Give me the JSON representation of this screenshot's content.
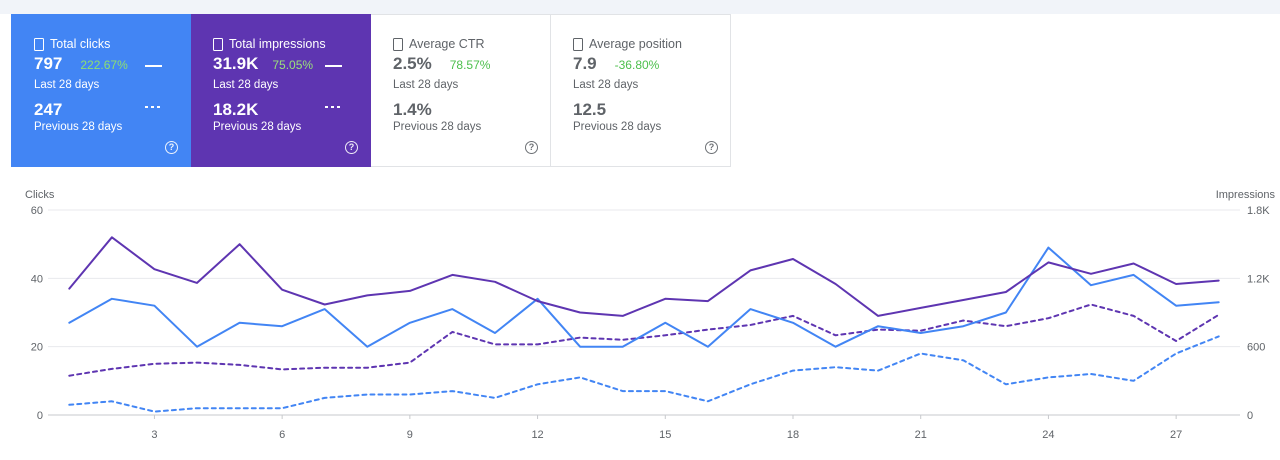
{
  "cards": [
    {
      "label": "Total clicks",
      "value": "797",
      "delta": "222.67%",
      "period": "Last 28 days",
      "prev_value": "247",
      "prev_period": "Previous 28 days",
      "help": "?",
      "selected": true
    },
    {
      "label": "Total impressions",
      "value": "31.9K",
      "delta": "75.05%",
      "period": "Last 28 days",
      "prev_value": "18.2K",
      "prev_period": "Previous 28 days",
      "help": "?",
      "selected": true
    },
    {
      "label": "Average CTR",
      "value": "2.5%",
      "delta": "78.57%",
      "period": "Last 28 days",
      "prev_value": "1.4%",
      "prev_period": "Previous 28 days",
      "help": "?",
      "selected": false
    },
    {
      "label": "Average position",
      "value": "7.9",
      "delta": "-36.80%",
      "period": "Last 28 days",
      "prev_value": "12.5",
      "prev_period": "Previous 28 days",
      "help": "?",
      "selected": false
    }
  ],
  "colors": {
    "clicks": "#4285f4",
    "impressions": "#5e35b1",
    "delta_positive": "#7cdf59",
    "grid": "#e8eaed",
    "axis_text": "#5f6368"
  },
  "chart_data": {
    "type": "line",
    "ylabel_left": "Clicks",
    "ylabel_right": "Impressions",
    "y_left_ticks": [
      "0",
      "20",
      "40",
      "60"
    ],
    "y_right_ticks": [
      "0",
      "600",
      "1.2K",
      "1.8K"
    ],
    "ylim_left": [
      0,
      60
    ],
    "ylim_right": [
      0,
      1800
    ],
    "x": [
      1,
      2,
      3,
      4,
      5,
      6,
      7,
      8,
      9,
      10,
      11,
      12,
      13,
      14,
      15,
      16,
      17,
      18,
      19,
      20,
      21,
      22,
      23,
      24,
      25,
      26,
      27,
      28
    ],
    "x_ticks": [
      "3",
      "6",
      "9",
      "12",
      "15",
      "18",
      "21",
      "24",
      "27"
    ],
    "x_tick_values": [
      3,
      6,
      9,
      12,
      15,
      18,
      21,
      24,
      27
    ],
    "series": [
      {
        "name": "Clicks",
        "axis": "left",
        "style": "solid",
        "color": "#4285f4",
        "values": [
          27,
          34,
          32,
          20,
          27,
          26,
          31,
          20,
          27,
          31,
          24,
          34,
          20,
          20,
          27,
          20,
          31,
          27,
          20,
          26,
          24,
          26,
          30,
          49,
          38,
          41,
          32,
          33
        ]
      },
      {
        "name": "Impressions",
        "axis": "right",
        "style": "solid",
        "color": "#5e35b1",
        "values": [
          1110,
          1560,
          1280,
          1160,
          1500,
          1100,
          970,
          1050,
          1090,
          1230,
          1170,
          1000,
          900,
          870,
          1020,
          1000,
          1270,
          1370,
          1150,
          870,
          940,
          1010,
          1080,
          1340,
          1240,
          1330,
          1150,
          1180
        ]
      },
      {
        "name": "Clicks (previous)",
        "axis": "left",
        "style": "dashed",
        "color": "#4285f4",
        "values": [
          3,
          4,
          1,
          2,
          2,
          2,
          5,
          6,
          6,
          7,
          5,
          9,
          11,
          7,
          7,
          4,
          9,
          13,
          14,
          13,
          18,
          16,
          9,
          11,
          12,
          10,
          18,
          23
        ]
      },
      {
        "name": "Impressions (previous)",
        "axis": "right",
        "style": "dashed",
        "color": "#5e35b1",
        "values": [
          345,
          405,
          450,
          460,
          440,
          400,
          415,
          415,
          460,
          730,
          620,
          620,
          680,
          660,
          700,
          750,
          790,
          870,
          700,
          750,
          740,
          830,
          780,
          850,
          970,
          870,
          650,
          880
        ]
      }
    ]
  }
}
